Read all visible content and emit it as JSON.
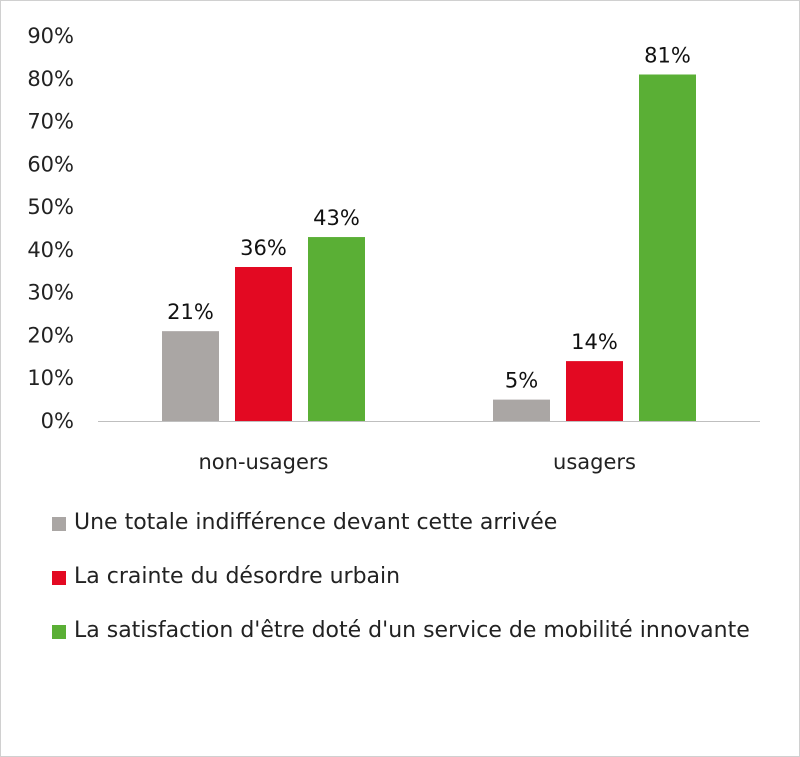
{
  "chart_data": {
    "type": "bar",
    "categories": [
      "non-usagers",
      "usagers"
    ],
    "series": [
      {
        "name": "Une totale indifférence devant cette arrivée",
        "color": "#aaa6a4",
        "values": [
          21,
          5
        ],
        "labels": [
          "21%",
          "5%"
        ]
      },
      {
        "name": "La crainte du désordre urbain",
        "color": "#e30922",
        "values": [
          36,
          14
        ],
        "labels": [
          "36%",
          "14%"
        ]
      },
      {
        "name": "La satisfaction d'être doté d'un service de mobilité innovante",
        "color": "#5aaf35",
        "values": [
          43,
          81
        ],
        "labels": [
          "43%",
          "81%"
        ]
      }
    ],
    "yticks": [
      "0%",
      "10%",
      "20%",
      "30%",
      "40%",
      "50%",
      "60%",
      "70%",
      "80%",
      "90%"
    ],
    "ylim": [
      0,
      90
    ],
    "grid": false,
    "legend_position": "bottom",
    "title": "",
    "xlabel": "",
    "ylabel": ""
  }
}
